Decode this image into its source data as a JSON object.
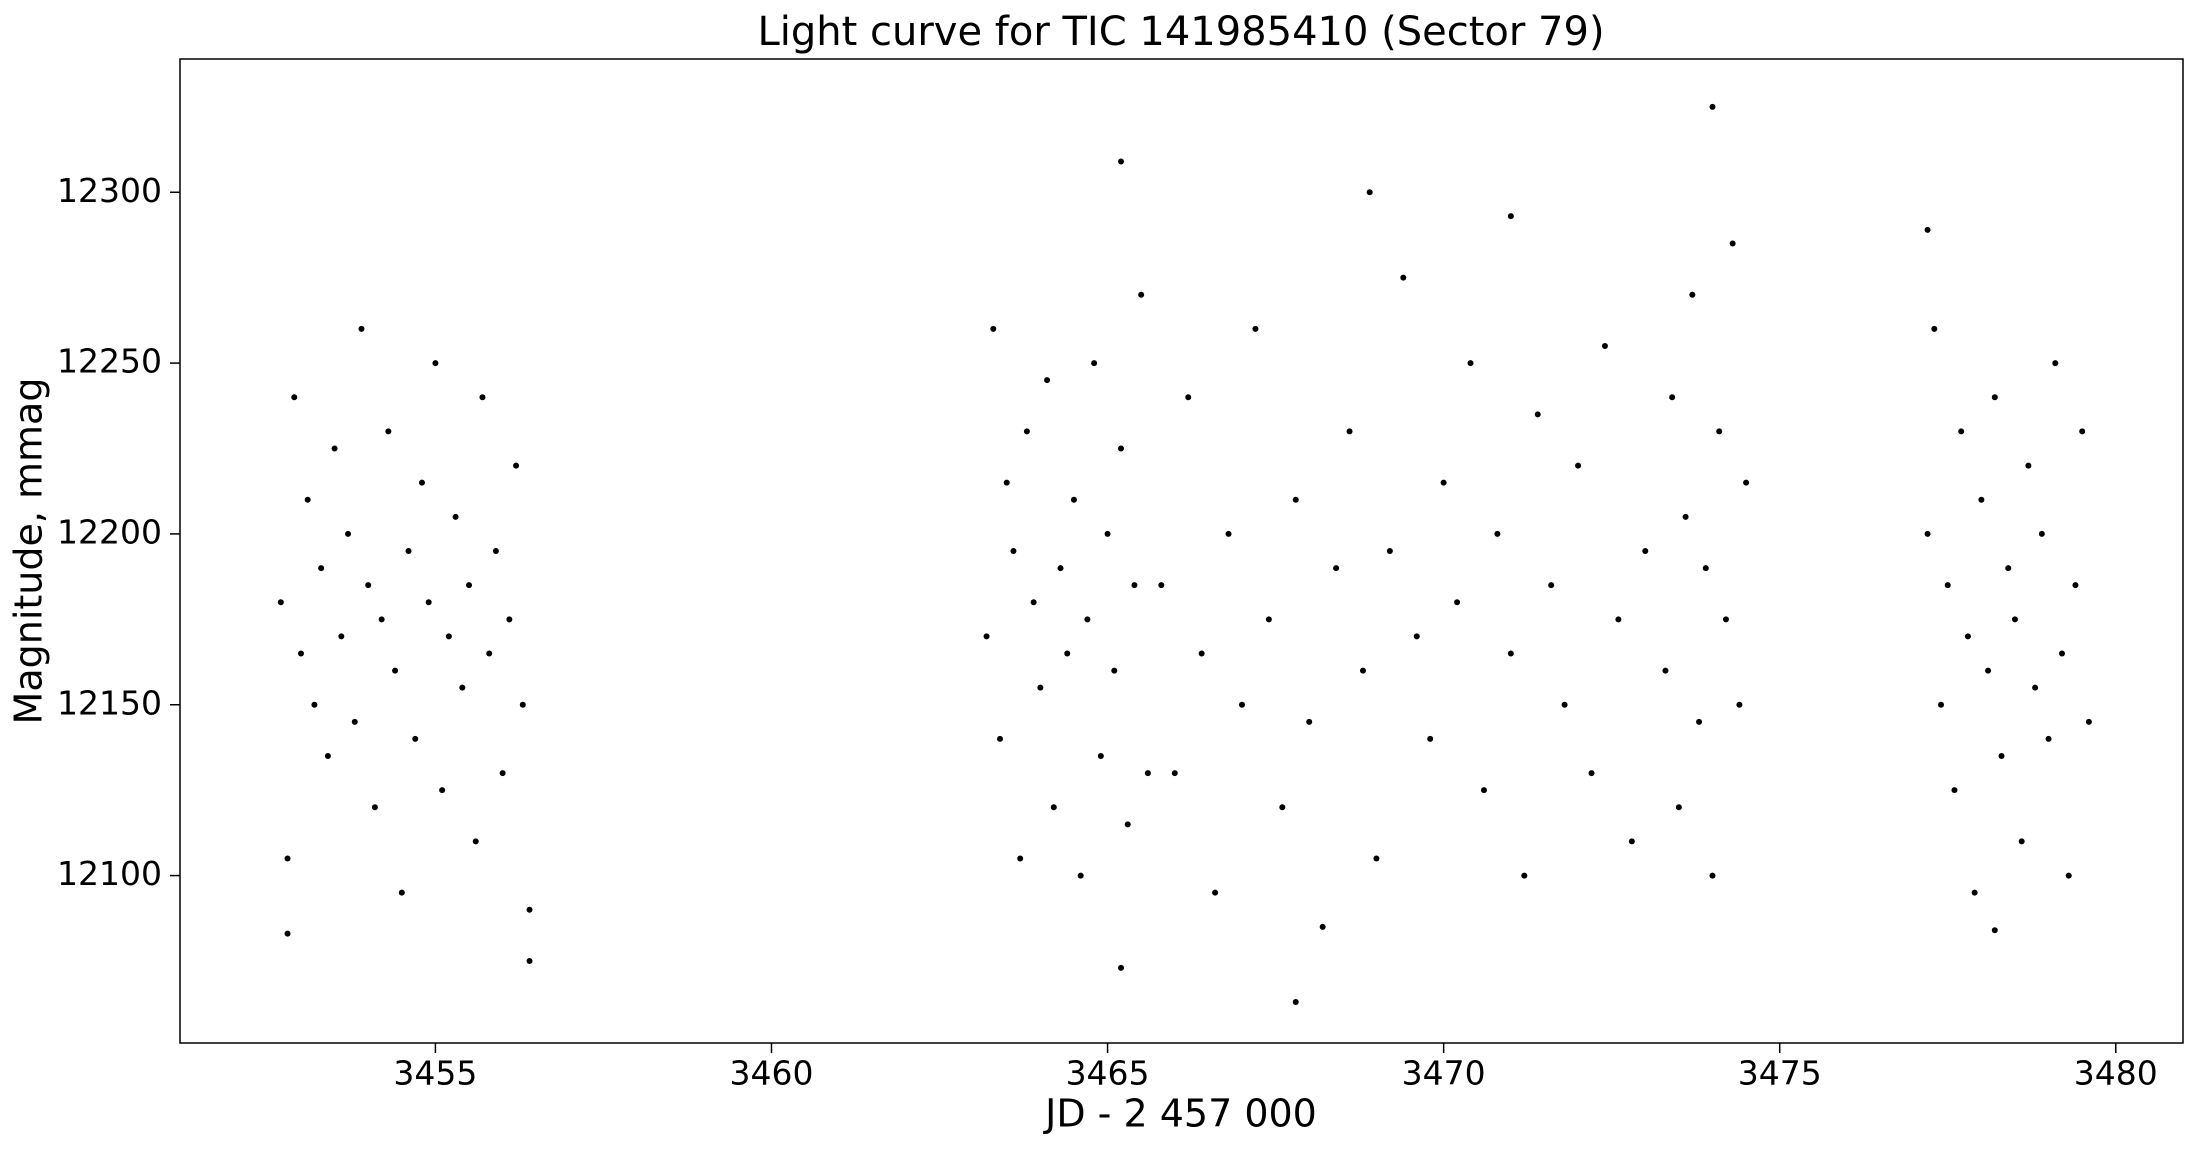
{
  "chart_data": {
    "type": "scatter",
    "title": "Light curve for TIC 141985410 (Sector 79)",
    "x_label": "JD - 2 457 000",
    "y_label": "Magnitude, mmag",
    "color": "#000000",
    "xlim": [
      3451.2,
      3481.0
    ],
    "ylim": [
      12051,
      12339
    ],
    "xticks": [
      3455,
      3460,
      3465,
      3470,
      3475,
      3480
    ],
    "yticks": [
      12100,
      12150,
      12200,
      12250,
      12300
    ],
    "x": [
      3452.7,
      3452.8,
      3452.9,
      3453.0,
      3453.1,
      3453.2,
      3453.3,
      3453.4,
      3453.5,
      3453.6,
      3453.7,
      3453.8,
      3453.9,
      3454.0,
      3454.1,
      3454.2,
      3454.3,
      3454.4,
      3454.5,
      3454.6,
      3454.7,
      3454.8,
      3454.9,
      3455.0,
      3455.1,
      3455.2,
      3455.3,
      3455.4,
      3455.5,
      3455.6,
      3455.7,
      3455.8,
      3455.9,
      3456.0,
      3456.1,
      3456.2,
      3456.3,
      3456.4,
      3463.2,
      3463.3,
      3463.4,
      3463.5,
      3463.6,
      3463.7,
      3463.8,
      3463.9,
      3464.0,
      3464.1,
      3464.2,
      3464.3,
      3464.4,
      3464.5,
      3464.6,
      3464.7,
      3464.8,
      3464.9,
      3465.0,
      3465.1,
      3465.2,
      3465.3,
      3465.4,
      3465.5,
      3465.6,
      3465.8,
      3466.0,
      3466.2,
      3466.4,
      3466.6,
      3466.8,
      3467.0,
      3467.2,
      3467.4,
      3467.6,
      3467.8,
      3468.0,
      3468.2,
      3468.4,
      3468.6,
      3468.8,
      3469.0,
      3469.2,
      3469.4,
      3469.6,
      3469.8,
      3470.0,
      3470.2,
      3470.4,
      3470.6,
      3470.8,
      3471.0,
      3471.2,
      3471.4,
      3471.6,
      3471.8,
      3472.0,
      3472.2,
      3472.4,
      3472.6,
      3472.8,
      3473.0,
      3473.3,
      3473.4,
      3473.5,
      3473.6,
      3473.7,
      3473.8,
      3473.9,
      3474.0,
      3474.1,
      3474.2,
      3474.3,
      3474.4,
      3474.5,
      3477.2,
      3477.3,
      3477.4,
      3477.5,
      3477.6,
      3477.7,
      3477.8,
      3477.9,
      3478.0,
      3478.1,
      3478.2,
      3478.3,
      3478.4,
      3478.5,
      3478.6,
      3478.7,
      3478.8,
      3478.9,
      3479.0,
      3479.1,
      3479.2,
      3479.3,
      3479.4,
      3479.5,
      3479.6,
      3474.0,
      3465.2,
      3467.8,
      3456.4,
      3465.2,
      3452.8,
      3478.2,
      3468.9,
      3471.0,
      3477.2
    ],
    "values": [
      12180,
      12105,
      12240,
      12165,
      12210,
      12150,
      12190,
      12135,
      12225,
      12170,
      12200,
      12145,
      12260,
      12185,
      12120,
      12175,
      12230,
      12160,
      12095,
      12195,
      12140,
      12215,
      12180,
      12250,
      12125,
      12170,
      12205,
      12155,
      12185,
      12110,
      12240,
      12165,
      12195,
      12130,
      12175,
      12220,
      12150,
      12090,
      12170,
      12260,
      12140,
      12215,
      12195,
      12105,
      12230,
      12180,
      12155,
      12245,
      12120,
      12190,
      12165,
      12210,
      12100,
      12175,
      12250,
      12135,
      12200,
      12160,
      12225,
      12115,
      12185,
      12270,
      12130,
      12185,
      12130,
      12240,
      12165,
      12095,
      12200,
      12150,
      12260,
      12175,
      12120,
      12210,
      12145,
      12085,
      12190,
      12230,
      12160,
      12105,
      12195,
      12275,
      12170,
      12140,
      12215,
      12180,
      12250,
      12125,
      12200,
      12165,
      12100,
      12235,
      12185,
      12150,
      12220,
      12130,
      12255,
      12175,
      12110,
      12195,
      12160,
      12240,
      12120,
      12205,
      12270,
      12145,
      12190,
      12100,
      12230,
      12175,
      12285,
      12150,
      12215,
      12200,
      12260,
      12150,
      12185,
      12125,
      12230,
      12170,
      12095,
      12210,
      12160,
      12240,
      12135,
      12190,
      12175,
      12110,
      12220,
      12155,
      12200,
      12140,
      12250,
      12165,
      12100,
      12185,
      12230,
      12145,
      12325,
      12309,
      12063,
      12075,
      12073,
      12083,
      12084,
      12300,
      12293,
      12289
    ]
  }
}
